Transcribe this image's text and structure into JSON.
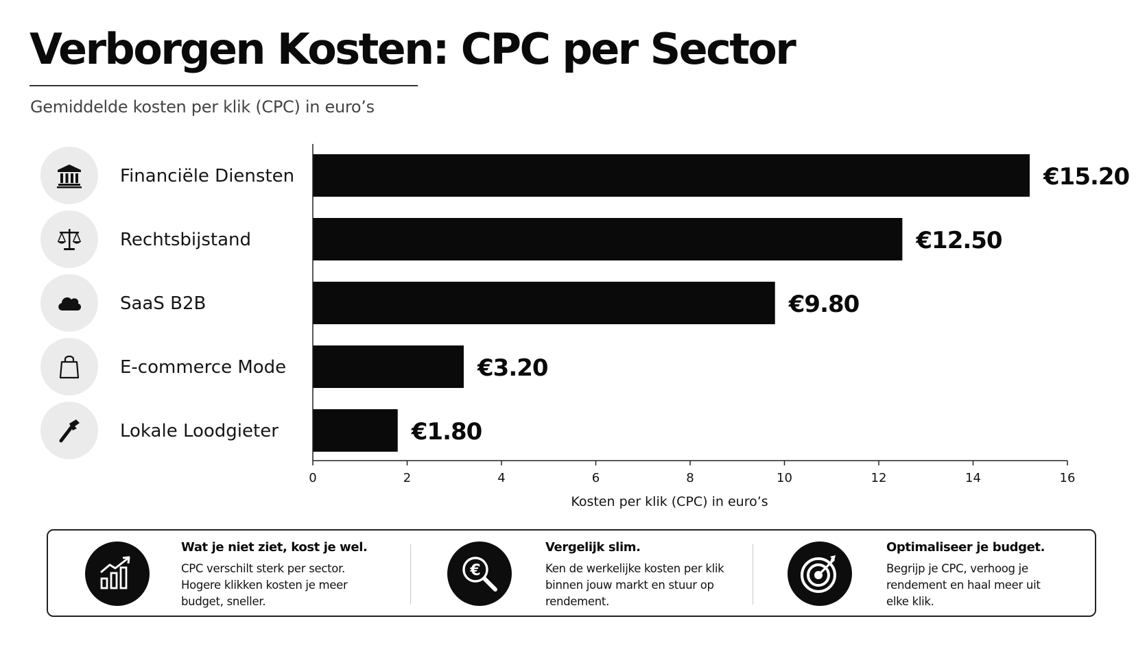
{
  "title": "Verborgen Kosten: CPC per Sector",
  "subtitle": "Gemiddelde kosten per klik (CPC) in euro’s",
  "colors": {
    "bar": "#0a0a0a",
    "icon_circle": "#ebebeb",
    "text": "#111111"
  },
  "chart_data": {
    "type": "bar",
    "orientation": "horizontal",
    "categories": [
      "Financiële Diensten",
      "Rechtsbijstand",
      "SaaS B2B",
      "E-commerce Mode",
      "Lokale Loodgieter"
    ],
    "category_icons": [
      "bank-icon",
      "scales-icon",
      "cloud-icon",
      "shopping-bag-icon",
      "pipe-wrench-icon"
    ],
    "values": [
      15.2,
      12.5,
      9.8,
      3.2,
      1.8
    ],
    "value_labels": [
      "€15.20",
      "€12.50",
      "€9.80",
      "€3.20",
      "€1.80"
    ],
    "xlabel": "Kosten per klik (CPC) in euro’s",
    "xlim": [
      0,
      16
    ],
    "xticks": [
      "0",
      "2",
      "4",
      "6",
      "8",
      "10",
      "12",
      "14",
      "16"
    ],
    "grid": false,
    "legend": "none"
  },
  "info_cards": [
    {
      "icon": "growth-chart-icon",
      "title": "Wat je niet ziet, kost je wel.",
      "text": "CPC verschilt sterk per sector.\nHogere klikken kosten je meer\nbudget, sneller."
    },
    {
      "icon": "euro-magnifier-icon",
      "title": "Vergelijk slim.",
      "text": "Ken de werkelijke kosten per klik\nbinnen jouw markt en stuur op\nrendement."
    },
    {
      "icon": "target-icon",
      "title": "Optimaliseer je budget.",
      "text": "Begrijp je CPC, verhoog je\nrendement en haal meer uit\nelke klik."
    }
  ]
}
